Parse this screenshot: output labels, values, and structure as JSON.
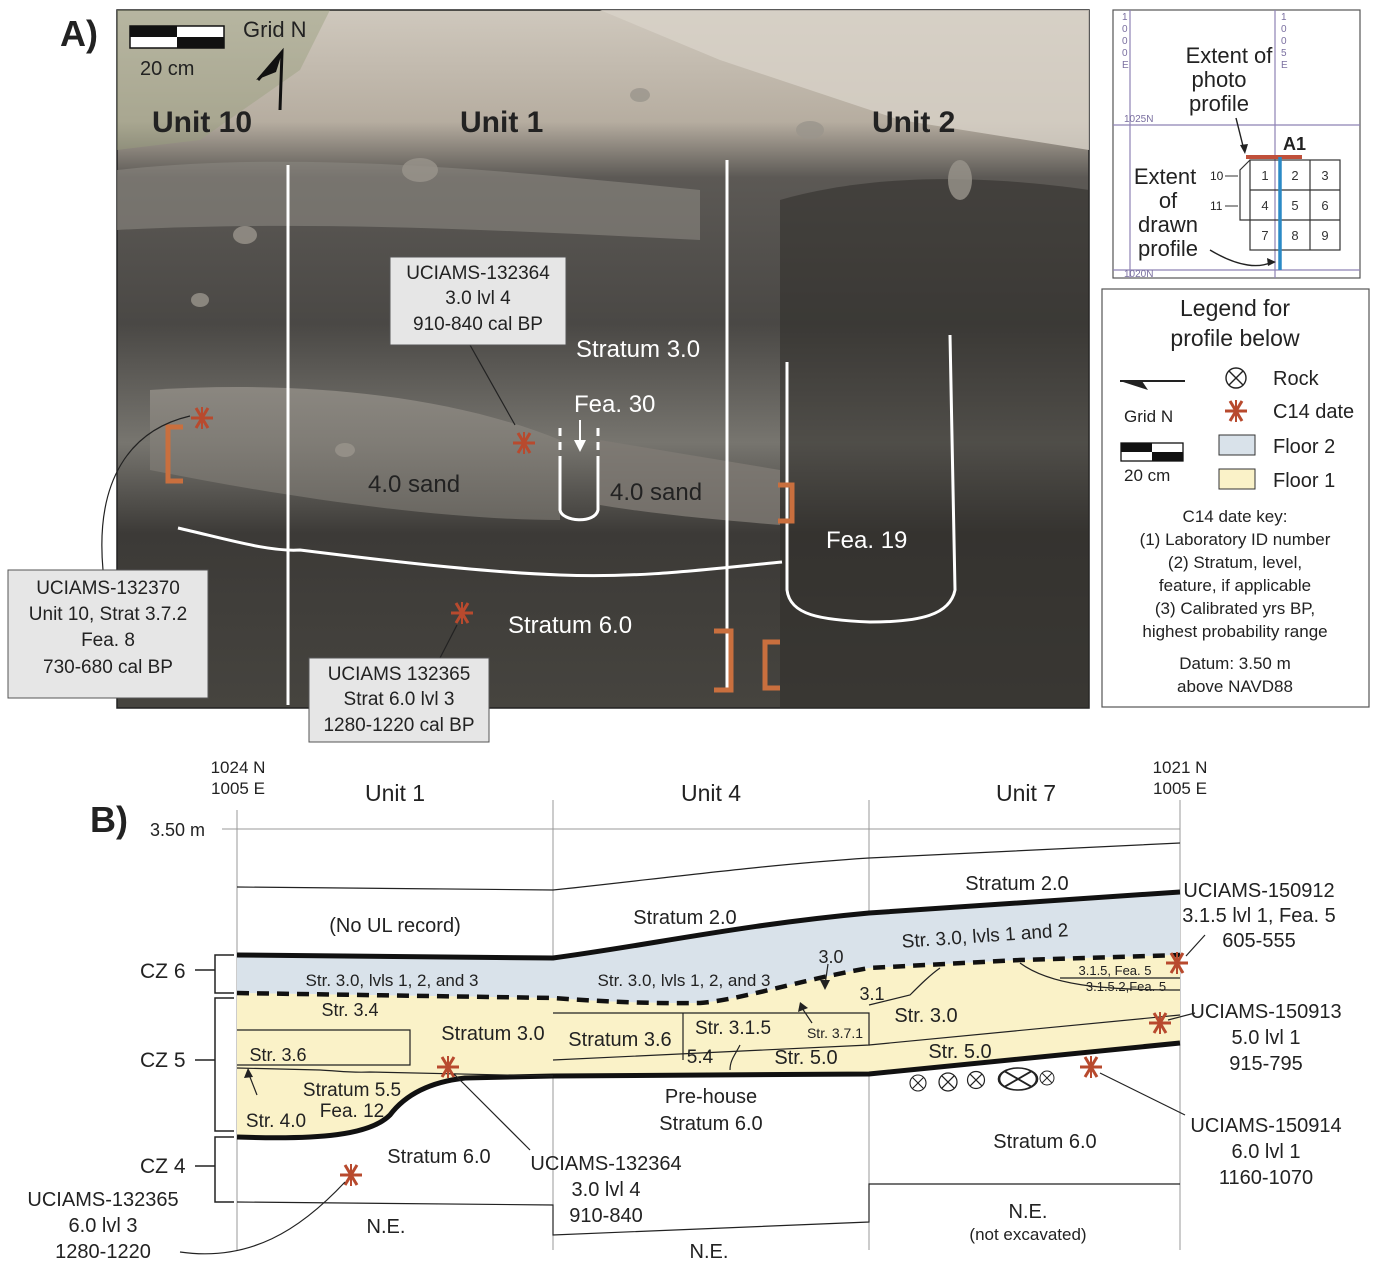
{
  "panel_a": {
    "label": "A)",
    "scale_bar": "20 cm",
    "grid_n": "Grid N",
    "units": [
      "Unit 10",
      "Unit 1",
      "Unit 2"
    ],
    "strata_labels": {
      "stratum_3": "Stratum 3.0",
      "fea_30": "Fea. 30",
      "sand_left": "4.0 sand",
      "sand_right": "4.0 sand",
      "fea_19": "Fea. 19",
      "stratum_6": "Stratum 6.0"
    },
    "dates": [
      {
        "lines": [
          "UCIAMS-132364",
          "3.0 lvl 4",
          "910-840 cal BP"
        ]
      },
      {
        "lines": [
          "UCIAMS-132370",
          "Unit 10, Strat 3.7.2",
          "Fea. 8",
          "730-680 cal BP"
        ]
      },
      {
        "lines": [
          "UCIAMS 132365",
          "Strat 6.0 lvl 3",
          "1280-1220 cal BP"
        ]
      }
    ]
  },
  "inset_map": {
    "e1000": [
      "1",
      "0",
      "0",
      "0",
      "E"
    ],
    "e1005": [
      "1",
      "0",
      "0",
      "5",
      "E"
    ],
    "n1025": "1025N",
    "n1020": "1020N",
    "photo_extent": [
      "Extent of",
      "photo",
      "profile"
    ],
    "drawn_extent": [
      "Extent",
      "of",
      "drawn",
      "profile"
    ],
    "block_label": "A1",
    "cells": [
      "1",
      "2",
      "3",
      "4",
      "5",
      "6",
      "7",
      "8",
      "9"
    ],
    "row_markers": [
      "10",
      "11"
    ]
  },
  "legend": {
    "title": [
      "Legend for",
      "profile below"
    ],
    "grid_n": "Grid N",
    "scale": "20 cm",
    "items": [
      {
        "symbol": "rock",
        "label": "Rock"
      },
      {
        "symbol": "asterisk",
        "label": "C14 date",
        "color": "#b84a2e"
      },
      {
        "symbol": "swatch",
        "label": "Floor 2",
        "color": "#d9e2ea"
      },
      {
        "symbol": "swatch",
        "label": "Floor 1",
        "color": "#faf2c8"
      }
    ],
    "key_lines": [
      "C14 date key:",
      "(1) Laboratory ID number",
      "(2) Stratum, level,",
      "feature, if applicable",
      "(3) Calibrated yrs BP,",
      "highest probability range"
    ],
    "datum_lines": [
      "Datum: 3.50 m",
      "above NAVD88"
    ]
  },
  "panel_b": {
    "label": "B)",
    "left_coord": [
      "1024 N",
      "1005 E"
    ],
    "right_coord": [
      "1021 N",
      "1005 E"
    ],
    "units": [
      "Unit 1",
      "Unit 4",
      "Unit 7"
    ],
    "elevation": "3.50 m",
    "zones": [
      "CZ 6",
      "CZ 5",
      "CZ 4"
    ],
    "labels": {
      "no_ul": "(No UL record)",
      "str20_mid": "Stratum 2.0",
      "str20_right": "Stratum 2.0",
      "floor2_left": "Str. 3.0, lvls 1, 2, and 3",
      "floor2_mid": "Str. 3.0, lvls 1, 2, and 3",
      "floor2_right": "Str. 3.0, lvls 1 and 2",
      "s30_small": "3.0",
      "s31": "3.1",
      "s315_fea5": "3.1.5, Fea. 5",
      "s3152_fea5": "3.1.5.2,Fea. 5",
      "s34": "Str. 3.4",
      "s36": "Str. 3.6",
      "s30_u1": "Stratum 3.0",
      "s36_u4": "Stratum 3.6",
      "s315": "Str. 3.1.5",
      "s371": "Str. 3.7.1",
      "s54": "5.4",
      "s50_u4": "Str. 5.0",
      "s30_u7": "Str. 3.0",
      "s50_u7": "Str. 5.0",
      "s40": "Str. 4.0",
      "s55": "Stratum 5.5",
      "fea12": "Fea. 12",
      "prehouse": "Pre-house",
      "s60_u4": "Stratum 6.0",
      "s60_u1": "Stratum 6.0",
      "s60_u7": "Stratum 6.0",
      "ne1": "N.E.",
      "ne2": "N.E.",
      "ne3": "N.E.",
      "not_excavated": "(not excavated)"
    },
    "dates": [
      {
        "lines": [
          "UCIAMS-150912",
          "3.1.5 lvl 1, Fea. 5",
          "605-555"
        ]
      },
      {
        "lines": [
          "UCIAMS-150913",
          "5.0 lvl 1",
          "915-795"
        ]
      },
      {
        "lines": [
          "UCIAMS-150914",
          "6.0 lvl 1",
          "1160-1070"
        ]
      },
      {
        "lines": [
          "UCIAMS-132364",
          "3.0 lvl 4",
          "910-840"
        ]
      },
      {
        "lines": [
          "UCIAMS-132365",
          "6.0 lvl 3",
          "1280-1220"
        ]
      }
    ]
  }
}
